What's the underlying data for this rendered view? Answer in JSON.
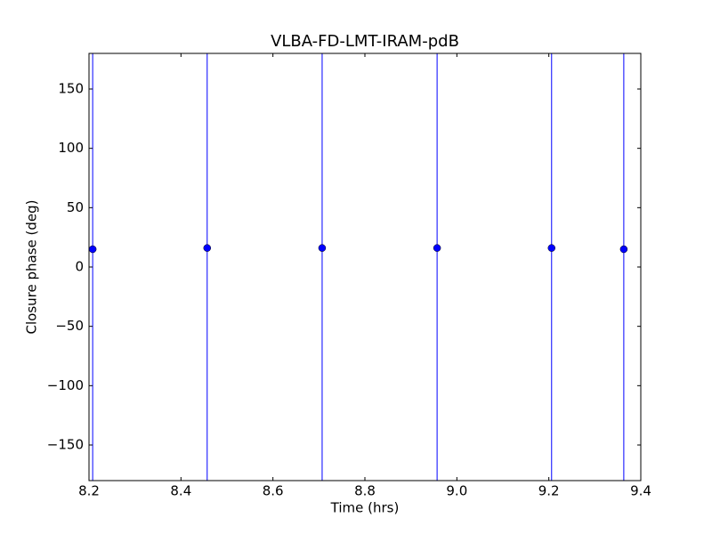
{
  "chart_data": {
    "type": "errorbar",
    "title": "VLBA-FD-LMT-IRAM-pdB",
    "xlabel": "Time (hrs)",
    "ylabel": "Closure phase (deg)",
    "x": [
      8.208,
      8.457,
      8.707,
      8.957,
      9.206,
      9.363
    ],
    "values": [
      15,
      16,
      16,
      16,
      16,
      15
    ],
    "errors": [
      200,
      200,
      200,
      200,
      200,
      200
    ],
    "color": "#0000ff",
    "xlim": [
      8.2,
      9.4
    ],
    "xticks": [
      8.2,
      8.4,
      8.6,
      8.8,
      {
        "value": 9,
        "label": "9.0"
      },
      9.2,
      9.4
    ],
    "ylim": [
      -180,
      180
    ],
    "yticks": [
      {
        "value": -150,
        "label": "−150"
      },
      {
        "value": -100,
        "label": "−100"
      },
      {
        "value": -50,
        "label": "−50"
      },
      0,
      50,
      100,
      150
    ],
    "grid": false
  }
}
